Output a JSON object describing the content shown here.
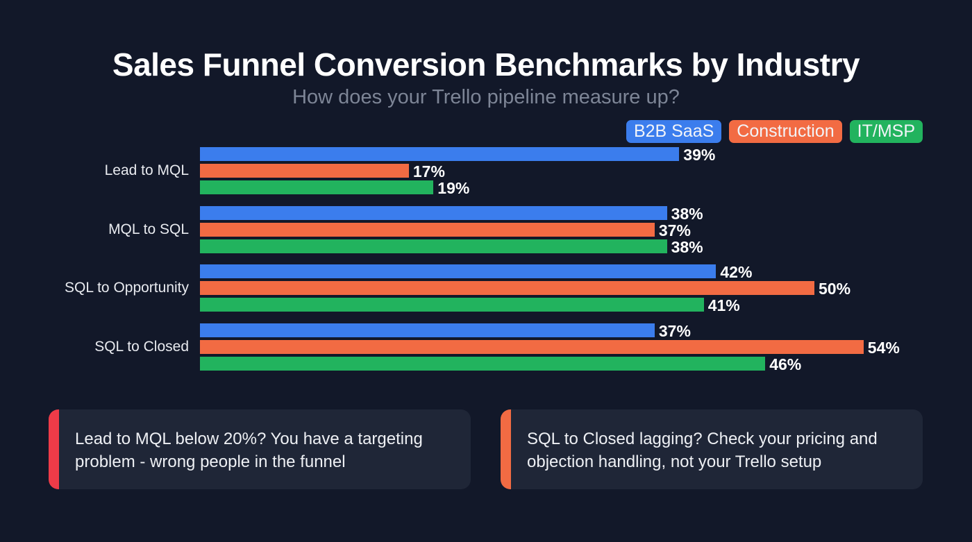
{
  "chart_data": {
    "type": "bar",
    "orientation": "horizontal",
    "title": "Sales Funnel Conversion Benchmarks by Industry",
    "subtitle": "How does your Trello pipeline measure up?",
    "categories": [
      "Lead to MQL",
      "MQL to SQL",
      "SQL to Opportunity",
      "SQL to Closed"
    ],
    "series": [
      {
        "name": "B2B SaaS",
        "color": "#3b7ded",
        "values": [
          39,
          38,
          42,
          37
        ]
      },
      {
        "name": "Construction",
        "color": "#f26b43",
        "values": [
          17,
          37,
          50,
          54
        ]
      },
      {
        "name": "IT/MSP",
        "color": "#22b35e",
        "values": [
          19,
          38,
          41,
          46
        ]
      }
    ],
    "value_suffix": "%",
    "xlim": [
      0,
      56
    ],
    "legend": "top-right",
    "grid": false
  },
  "callouts": [
    {
      "text": "Lead to MQL below 20%? You have a targeting problem - wrong people in the funnel",
      "accent": "#ef3b48"
    },
    {
      "text": "SQL to Closed lagging? Check your pricing and objection handling, not your Trello setup",
      "accent": "#f26b43"
    }
  ]
}
